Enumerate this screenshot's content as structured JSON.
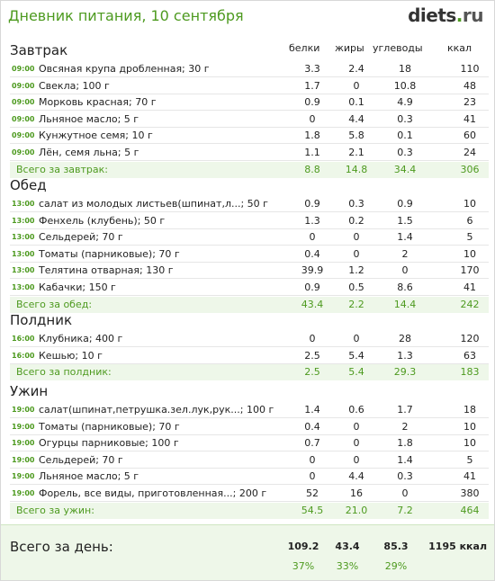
{
  "header": {
    "title": "Дневник питания, 10 сентября",
    "logo_main": "diets",
    "logo_dot": ".",
    "logo_tld": "ru"
  },
  "columns": {
    "protein": "белки",
    "fat": "жиры",
    "carbs": "углеводы",
    "kcal": "ккал"
  },
  "meals": [
    {
      "title": "Завтрак",
      "items": [
        {
          "time": "09:00",
          "name": "Овсяная крупа дробленная; 30 г",
          "p": "3.3",
          "f": "2.4",
          "c": "18",
          "k": "110"
        },
        {
          "time": "09:00",
          "name": "Свекла; 100 г",
          "p": "1.7",
          "f": "0",
          "c": "10.8",
          "k": "48"
        },
        {
          "time": "09:00",
          "name": "Морковь красная; 70 г",
          "p": "0.9",
          "f": "0.1",
          "c": "4.9",
          "k": "23"
        },
        {
          "time": "09:00",
          "name": "Льняное масло; 5 г",
          "p": "0",
          "f": "4.4",
          "c": "0.3",
          "k": "41"
        },
        {
          "time": "09:00",
          "name": "Кунжутное семя; 10 г",
          "p": "1.8",
          "f": "5.8",
          "c": "0.1",
          "k": "60"
        },
        {
          "time": "09:00",
          "name": "Лён, семя льна; 5 г",
          "p": "1.1",
          "f": "2.1",
          "c": "0.3",
          "k": "24"
        }
      ],
      "total": {
        "label": "Всего за завтрак:",
        "p": "8.8",
        "f": "14.8",
        "c": "34.4",
        "k": "306"
      }
    },
    {
      "title": "Обед",
      "items": [
        {
          "time": "13:00",
          "name": "салат из молодых листьев(шпинат,л...; 50 г",
          "p": "0.9",
          "f": "0.3",
          "c": "0.9",
          "k": "10"
        },
        {
          "time": "13:00",
          "name": "Фенхель (клубень); 50 г",
          "p": "1.3",
          "f": "0.2",
          "c": "1.5",
          "k": "6"
        },
        {
          "time": "13:00",
          "name": "Сельдерей; 70 г",
          "p": "0",
          "f": "0",
          "c": "1.4",
          "k": "5"
        },
        {
          "time": "13:00",
          "name": "Томаты (парниковые); 70 г",
          "p": "0.4",
          "f": "0",
          "c": "2",
          "k": "10"
        },
        {
          "time": "13:00",
          "name": "Телятина отварная; 130 г",
          "p": "39.9",
          "f": "1.2",
          "c": "0",
          "k": "170"
        },
        {
          "time": "13:00",
          "name": "Кабачки; 150 г",
          "p": "0.9",
          "f": "0.5",
          "c": "8.6",
          "k": "41"
        }
      ],
      "total": {
        "label": "Всего за обед:",
        "p": "43.4",
        "f": "2.2",
        "c": "14.4",
        "k": "242"
      }
    },
    {
      "title": "Полдник",
      "items": [
        {
          "time": "16:00",
          "name": "Клубника; 400 г",
          "p": "0",
          "f": "0",
          "c": "28",
          "k": "120"
        },
        {
          "time": "16:00",
          "name": "Кешью; 10 г",
          "p": "2.5",
          "f": "5.4",
          "c": "1.3",
          "k": "63"
        }
      ],
      "total": {
        "label": "Всего за полдник:",
        "p": "2.5",
        "f": "5.4",
        "c": "29.3",
        "k": "183"
      }
    },
    {
      "title": "Ужин",
      "items": [
        {
          "time": "19:00",
          "name": "салат(шпинат,петрушка.зел.лук,рук...; 100 г",
          "p": "1.4",
          "f": "0.6",
          "c": "1.7",
          "k": "18"
        },
        {
          "time": "19:00",
          "name": "Томаты (парниковые); 70 г",
          "p": "0.4",
          "f": "0",
          "c": "2",
          "k": "10"
        },
        {
          "time": "19:00",
          "name": "Огурцы парниковые; 100 г",
          "p": "0.7",
          "f": "0",
          "c": "1.8",
          "k": "10"
        },
        {
          "time": "19:00",
          "name": "Сельдерей; 70 г",
          "p": "0",
          "f": "0",
          "c": "1.4",
          "k": "5"
        },
        {
          "time": "19:00",
          "name": "Льняное масло; 5 г",
          "p": "0",
          "f": "4.4",
          "c": "0.3",
          "k": "41"
        },
        {
          "time": "19:00",
          "name": "Форель, все виды, приготовленная...; 200 г",
          "p": "52",
          "f": "16",
          "c": "0",
          "k": "380"
        }
      ],
      "total": {
        "label": "Всего за ужин:",
        "p": "54.5",
        "f": "21.0",
        "c": "7.2",
        "k": "464"
      }
    }
  ],
  "day_total": {
    "label": "Всего за день:",
    "p": "109.2",
    "f": "43.4",
    "c": "85.3",
    "k": "1195 ккал",
    "p_pct": "37%",
    "f_pct": "33%",
    "c_pct": "29%"
  },
  "colors": {
    "accent": "#4d9a1f",
    "total_bg": "#eef7e9"
  }
}
